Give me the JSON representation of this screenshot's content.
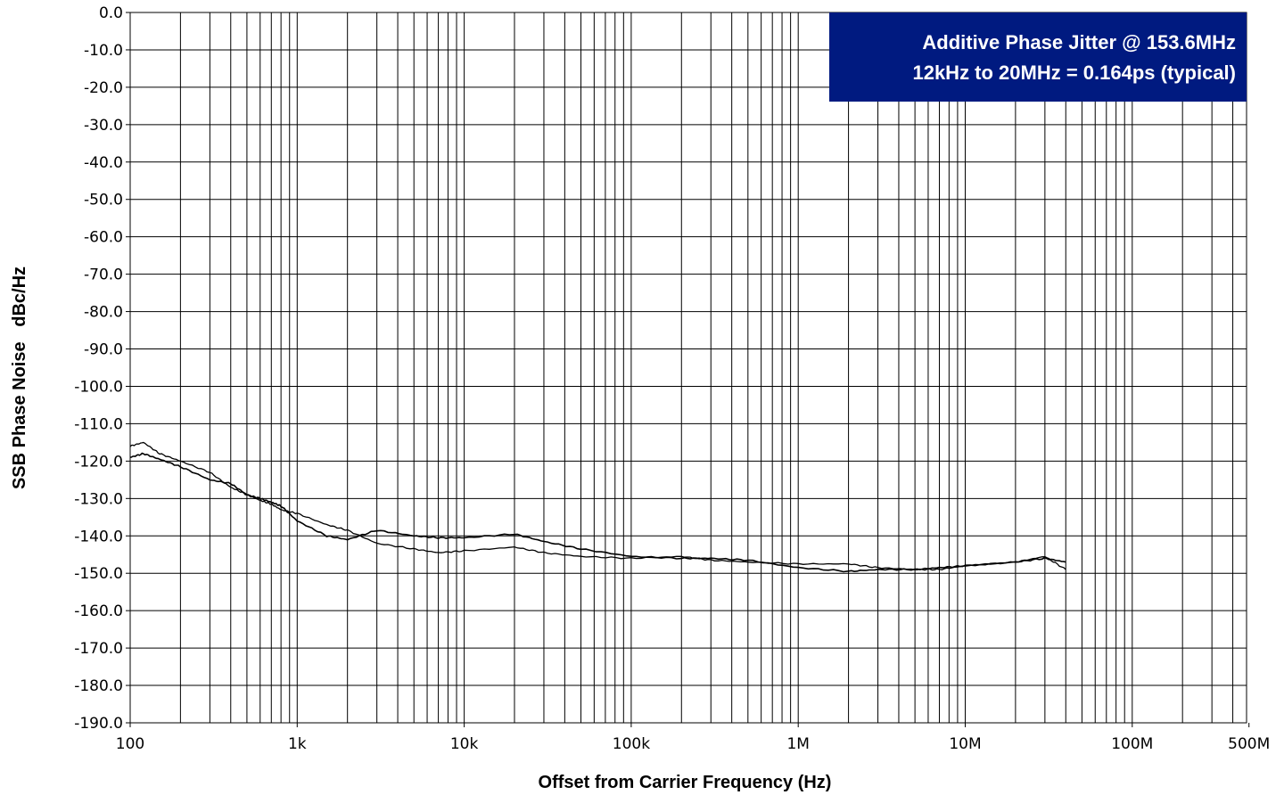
{
  "chart_data": {
    "type": "line",
    "xlabel": "Offset from Carrier Frequency (Hz)",
    "ylabel": "SSB Phase Noise   dBc/Hz",
    "xscale": "log",
    "xlim": [
      100,
      500000000
    ],
    "ylim": [
      -190,
      0
    ],
    "grid": true,
    "x_tick_labels": [
      {
        "value": 100,
        "label": "100"
      },
      {
        "value": 1000,
        "label": "1k"
      },
      {
        "value": 10000,
        "label": "10k"
      },
      {
        "value": 100000,
        "label": "100k"
      },
      {
        "value": 1000000,
        "label": "1M"
      },
      {
        "value": 10000000,
        "label": "10M"
      },
      {
        "value": 100000000,
        "label": "100M"
      },
      {
        "value": 500000000,
        "label": "500M"
      }
    ],
    "y_tick_labels": [
      {
        "value": 0,
        "label": "0.0"
      },
      {
        "value": -10,
        "label": "-10.0"
      },
      {
        "value": -20,
        "label": "-20.0"
      },
      {
        "value": -30,
        "label": "-30.0"
      },
      {
        "value": -40,
        "label": "-40.0"
      },
      {
        "value": -50,
        "label": "-50.0"
      },
      {
        "value": -60,
        "label": "-60.0"
      },
      {
        "value": -70,
        "label": "-70.0"
      },
      {
        "value": -80,
        "label": "-80.0"
      },
      {
        "value": -90,
        "label": "-90.0"
      },
      {
        "value": -100,
        "label": "-100.0"
      },
      {
        "value": -110,
        "label": "-110.0"
      },
      {
        "value": -120,
        "label": "-120.0"
      },
      {
        "value": -130,
        "label": "-130.0"
      },
      {
        "value": -140,
        "label": "-140.0"
      },
      {
        "value": -150,
        "label": "-150.0"
      },
      {
        "value": -160,
        "label": "-160.0"
      },
      {
        "value": -170,
        "label": "-170.0"
      },
      {
        "value": -180,
        "label": "-180.0"
      },
      {
        "value": -190,
        "label": "-190.0"
      }
    ],
    "annotation": {
      "lines": [
        "Additive Phase Jitter @ 153.6MHz",
        "12kHz to 20MHz = 0.164ps (typical)"
      ],
      "background": "#001a80",
      "placement": "top-right"
    },
    "series": [
      {
        "color": "#000000",
        "x": [
          100,
          120,
          150,
          200,
          300,
          400,
          500,
          600,
          700,
          800,
          1000,
          1500,
          2000,
          3000,
          5000,
          7000,
          10000,
          20000,
          30000,
          50000,
          100000,
          200000,
          300000,
          500000,
          1000000,
          2000000,
          3000000,
          5000000,
          7000000,
          10000000,
          20000000,
          30000000,
          40000000
        ],
        "y": [
          -119,
          -118,
          -119.5,
          -121.5,
          -125,
          -126,
          -129,
          -130,
          -131,
          -132,
          -136,
          -140,
          -141,
          -138.5,
          -140,
          -140.5,
          -140.5,
          -139.5,
          -141.5,
          -143.5,
          -145.5,
          -146,
          -146,
          -146.5,
          -148.5,
          -149.5,
          -149,
          -149,
          -148.5,
          -148,
          -147,
          -146,
          -147
        ]
      },
      {
        "color": "#000000",
        "x": [
          100,
          120,
          150,
          200,
          300,
          400,
          500,
          600,
          700,
          800,
          1000,
          1500,
          2000,
          3000,
          5000,
          7000,
          10000,
          20000,
          30000,
          50000,
          100000,
          200000,
          300000,
          500000,
          1000000,
          2000000,
          3000000,
          5000000,
          7000000,
          10000000,
          20000000,
          30000000,
          40000000
        ],
        "y": [
          -116,
          -115,
          -118,
          -120,
          -123,
          -127,
          -129,
          -130.5,
          -131.5,
          -133,
          -134,
          -137,
          -138.5,
          -142,
          -143.5,
          -144.5,
          -144,
          -143,
          -144.5,
          -145.5,
          -146,
          -145.5,
          -146.5,
          -147,
          -147.5,
          -147.5,
          -148.5,
          -149,
          -149,
          -148,
          -147,
          -145.5,
          -149
        ]
      }
    ]
  }
}
